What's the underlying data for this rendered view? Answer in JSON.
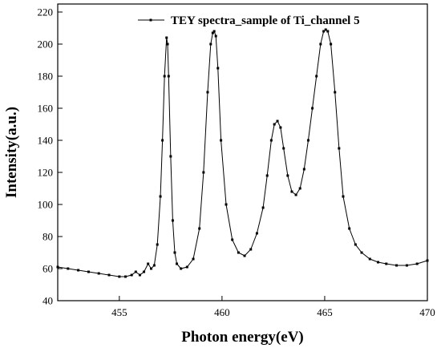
{
  "chart_data": {
    "type": "line",
    "xlabel": "Photon energy(eV)",
    "ylabel": "Intensity(a.u.)",
    "xlim": [
      452,
      470
    ],
    "ylim": [
      40,
      225
    ],
    "xticks": [
      455,
      460,
      465,
      470
    ],
    "yticks": [
      40,
      60,
      80,
      100,
      120,
      140,
      160,
      180,
      200,
      220
    ],
    "grid": false,
    "legend_position": "top-right",
    "series": [
      {
        "name": "TEY spectra_sample of Ti_channel 5",
        "color": "#000000",
        "marker": "square",
        "x": [
          452.0,
          452.5,
          453.0,
          453.5,
          454.0,
          454.5,
          455.0,
          455.3,
          455.6,
          455.8,
          456.0,
          456.2,
          456.4,
          456.55,
          456.7,
          456.85,
          457.0,
          457.1,
          457.2,
          457.3,
          457.35,
          457.4,
          457.5,
          457.6,
          457.7,
          457.8,
          458.0,
          458.3,
          458.6,
          458.9,
          459.1,
          459.3,
          459.45,
          459.55,
          459.62,
          459.7,
          459.8,
          459.95,
          460.2,
          460.5,
          460.8,
          461.1,
          461.4,
          461.7,
          462.0,
          462.2,
          462.4,
          462.55,
          462.7,
          462.85,
          463.0,
          463.2,
          463.4,
          463.6,
          463.8,
          464.0,
          464.2,
          464.4,
          464.6,
          464.8,
          464.95,
          465.05,
          465.15,
          465.3,
          465.5,
          465.7,
          465.9,
          466.2,
          466.5,
          466.8,
          467.2,
          467.6,
          468.0,
          468.5,
          469.0,
          469.5,
          470.0
        ],
        "y": [
          61,
          60,
          59,
          58,
          57,
          56,
          55,
          55,
          56,
          58,
          56,
          58,
          63,
          60,
          62,
          75,
          105,
          140,
          180,
          204,
          200,
          180,
          130,
          90,
          70,
          63,
          60,
          61,
          66,
          85,
          120,
          170,
          200,
          207,
          208,
          205,
          185,
          140,
          100,
          78,
          70,
          68,
          72,
          82,
          98,
          118,
          140,
          150,
          152,
          148,
          135,
          118,
          108,
          106,
          110,
          122,
          140,
          160,
          180,
          200,
          208,
          209,
          208,
          200,
          170,
          135,
          105,
          85,
          75,
          70,
          66,
          64,
          63,
          62,
          62,
          63,
          65
        ]
      }
    ]
  }
}
